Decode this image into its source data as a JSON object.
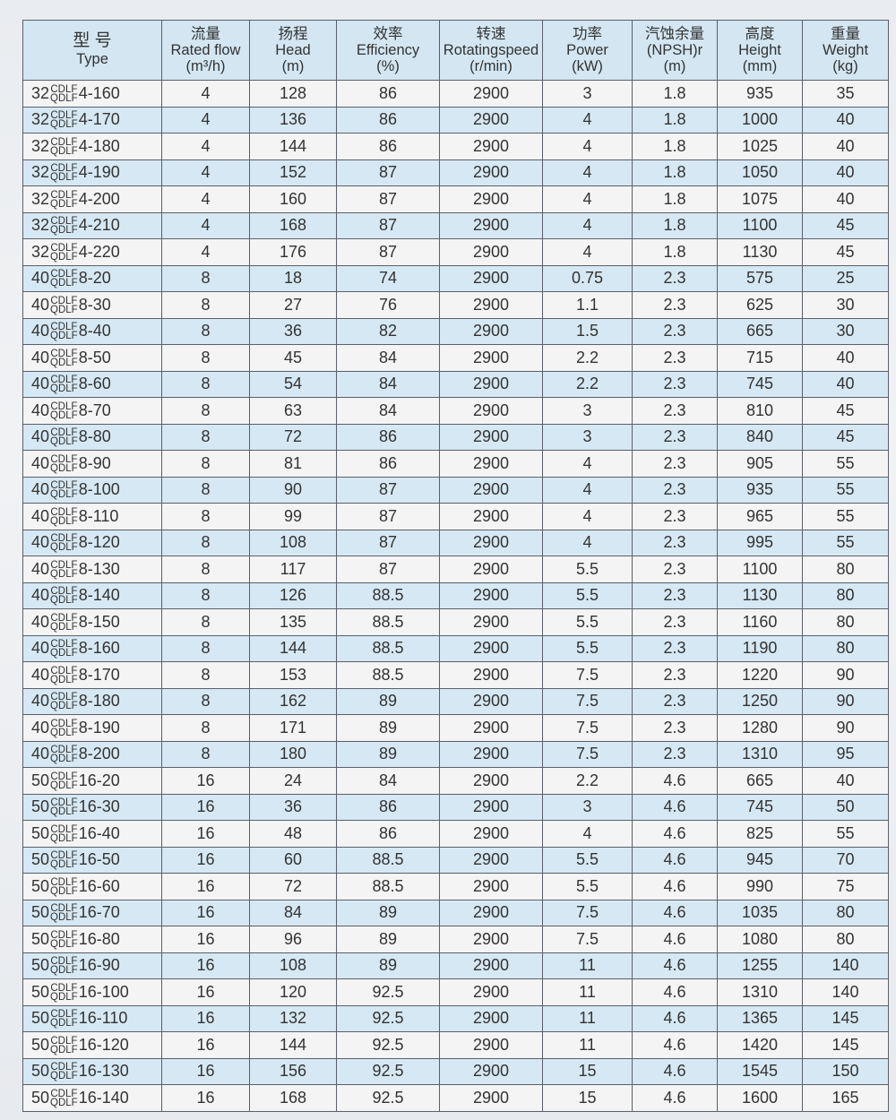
{
  "headers": [
    {
      "cn": "型 号",
      "en": "Type",
      "unit": ""
    },
    {
      "cn": "流量",
      "en": "Rated flow",
      "unit": "(m³/h)"
    },
    {
      "cn": "扬程",
      "en": "Head",
      "unit": "(m)"
    },
    {
      "cn": "效率",
      "en": "Efficiency",
      "unit": "(%)"
    },
    {
      "cn": "转速",
      "en": "Rotatingspeed",
      "unit": "(r/min)"
    },
    {
      "cn": "功率",
      "en": "Power",
      "unit": "(kW)"
    },
    {
      "cn": "汽蚀余量",
      "en": "(NPSH)r",
      "unit": "(m)"
    },
    {
      "cn": "高度",
      "en": "Height",
      "unit": "(mm)"
    },
    {
      "cn": "重量",
      "en": "Weight",
      "unit": "(kg)"
    }
  ],
  "series_top": "CDLF",
  "series_bottom": "QDLF",
  "rows": [
    [
      "32",
      "4-160",
      "4",
      "128",
      "86",
      "2900",
      "3",
      "1.8",
      "935",
      "35"
    ],
    [
      "32",
      "4-170",
      "4",
      "136",
      "86",
      "2900",
      "4",
      "1.8",
      "1000",
      "40"
    ],
    [
      "32",
      "4-180",
      "4",
      "144",
      "86",
      "2900",
      "4",
      "1.8",
      "1025",
      "40"
    ],
    [
      "32",
      "4-190",
      "4",
      "152",
      "87",
      "2900",
      "4",
      "1.8",
      "1050",
      "40"
    ],
    [
      "32",
      "4-200",
      "4",
      "160",
      "87",
      "2900",
      "4",
      "1.8",
      "1075",
      "40"
    ],
    [
      "32",
      "4-210",
      "4",
      "168",
      "87",
      "2900",
      "4",
      "1.8",
      "1100",
      "45"
    ],
    [
      "32",
      "4-220",
      "4",
      "176",
      "87",
      "2900",
      "4",
      "1.8",
      "1130",
      "45"
    ],
    [
      "40",
      "8-20",
      "8",
      "18",
      "74",
      "2900",
      "0.75",
      "2.3",
      "575",
      "25"
    ],
    [
      "40",
      "8-30",
      "8",
      "27",
      "76",
      "2900",
      "1.1",
      "2.3",
      "625",
      "30"
    ],
    [
      "40",
      "8-40",
      "8",
      "36",
      "82",
      "2900",
      "1.5",
      "2.3",
      "665",
      "30"
    ],
    [
      "40",
      "8-50",
      "8",
      "45",
      "84",
      "2900",
      "2.2",
      "2.3",
      "715",
      "40"
    ],
    [
      "40",
      "8-60",
      "8",
      "54",
      "84",
      "2900",
      "2.2",
      "2.3",
      "745",
      "40"
    ],
    [
      "40",
      "8-70",
      "8",
      "63",
      "84",
      "2900",
      "3",
      "2.3",
      "810",
      "45"
    ],
    [
      "40",
      "8-80",
      "8",
      "72",
      "86",
      "2900",
      "3",
      "2.3",
      "840",
      "45"
    ],
    [
      "40",
      "8-90",
      "8",
      "81",
      "86",
      "2900",
      "4",
      "2.3",
      "905",
      "55"
    ],
    [
      "40",
      "8-100",
      "8",
      "90",
      "87",
      "2900",
      "4",
      "2.3",
      "935",
      "55"
    ],
    [
      "40",
      "8-110",
      "8",
      "99",
      "87",
      "2900",
      "4",
      "2.3",
      "965",
      "55"
    ],
    [
      "40",
      "8-120",
      "8",
      "108",
      "87",
      "2900",
      "4",
      "2.3",
      "995",
      "55"
    ],
    [
      "40",
      "8-130",
      "8",
      "117",
      "87",
      "2900",
      "5.5",
      "2.3",
      "1100",
      "80"
    ],
    [
      "40",
      "8-140",
      "8",
      "126",
      "88.5",
      "2900",
      "5.5",
      "2.3",
      "1130",
      "80"
    ],
    [
      "40",
      "8-150",
      "8",
      "135",
      "88.5",
      "2900",
      "5.5",
      "2.3",
      "1160",
      "80"
    ],
    [
      "40",
      "8-160",
      "8",
      "144",
      "88.5",
      "2900",
      "5.5",
      "2.3",
      "1190",
      "80"
    ],
    [
      "40",
      "8-170",
      "8",
      "153",
      "88.5",
      "2900",
      "7.5",
      "2.3",
      "1220",
      "90"
    ],
    [
      "40",
      "8-180",
      "8",
      "162",
      "89",
      "2900",
      "7.5",
      "2.3",
      "1250",
      "90"
    ],
    [
      "40",
      "8-190",
      "8",
      "171",
      "89",
      "2900",
      "7.5",
      "2.3",
      "1280",
      "90"
    ],
    [
      "40",
      "8-200",
      "8",
      "180",
      "89",
      "2900",
      "7.5",
      "2.3",
      "1310",
      "95"
    ],
    [
      "50",
      "16-20",
      "16",
      "24",
      "84",
      "2900",
      "2.2",
      "4.6",
      "665",
      "40"
    ],
    [
      "50",
      "16-30",
      "16",
      "36",
      "86",
      "2900",
      "3",
      "4.6",
      "745",
      "50"
    ],
    [
      "50",
      "16-40",
      "16",
      "48",
      "86",
      "2900",
      "4",
      "4.6",
      "825",
      "55"
    ],
    [
      "50",
      "16-50",
      "16",
      "60",
      "88.5",
      "2900",
      "5.5",
      "4.6",
      "945",
      "70"
    ],
    [
      "50",
      "16-60",
      "16",
      "72",
      "88.5",
      "2900",
      "5.5",
      "4.6",
      "990",
      "75"
    ],
    [
      "50",
      "16-70",
      "16",
      "84",
      "89",
      "2900",
      "7.5",
      "4.6",
      "1035",
      "80"
    ],
    [
      "50",
      "16-80",
      "16",
      "96",
      "89",
      "2900",
      "7.5",
      "4.6",
      "1080",
      "80"
    ],
    [
      "50",
      "16-90",
      "16",
      "108",
      "89",
      "2900",
      "11",
      "4.6",
      "1255",
      "140"
    ],
    [
      "50",
      "16-100",
      "16",
      "120",
      "92.5",
      "2900",
      "11",
      "4.6",
      "1310",
      "140"
    ],
    [
      "50",
      "16-110",
      "16",
      "132",
      "92.5",
      "2900",
      "11",
      "4.6",
      "1365",
      "145"
    ],
    [
      "50",
      "16-120",
      "16",
      "144",
      "92.5",
      "2900",
      "11",
      "4.6",
      "1420",
      "145"
    ],
    [
      "50",
      "16-130",
      "16",
      "156",
      "92.5",
      "2900",
      "15",
      "4.6",
      "1545",
      "150"
    ],
    [
      "50",
      "16-140",
      "16",
      "168",
      "92.5",
      "2900",
      "15",
      "4.6",
      "1600",
      "165"
    ]
  ]
}
